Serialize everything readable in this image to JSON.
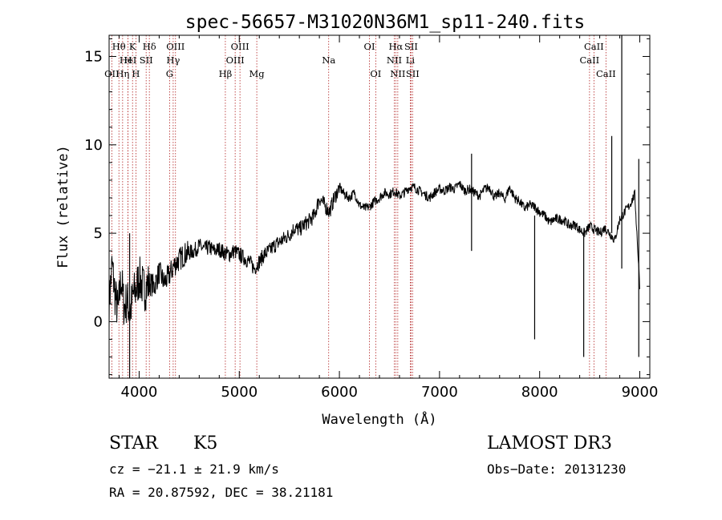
{
  "chart_data": {
    "type": "line",
    "title": "spec-56657-M31020N36M1_sp11-240.fits",
    "xlabel": "Wavelength (Å)",
    "ylabel": "Flux (relative)",
    "xlim": [
      3700,
      9100
    ],
    "ylim": [
      -3.2,
      16.2
    ],
    "x_ticks": [
      4000,
      5000,
      6000,
      7000,
      8000,
      9000
    ],
    "y_ticks": [
      0,
      5,
      10,
      15
    ],
    "series": [
      {
        "name": "flux",
        "x": [
          3700,
          3730,
          3760,
          3790,
          3820,
          3850,
          3880,
          3910,
          3940,
          3970,
          4000,
          4050,
          4100,
          4150,
          4200,
          4250,
          4300,
          4350,
          4400,
          4450,
          4500,
          4550,
          4600,
          4650,
          4700,
          4750,
          4800,
          4850,
          4900,
          4950,
          5000,
          5050,
          5100,
          5150,
          5200,
          5250,
          5300,
          5350,
          5400,
          5450,
          5500,
          5550,
          5600,
          5650,
          5700,
          5750,
          5800,
          5850,
          5900,
          5950,
          6000,
          6050,
          6100,
          6150,
          6200,
          6250,
          6300,
          6350,
          6400,
          6450,
          6500,
          6550,
          6600,
          6650,
          6700,
          6750,
          6800,
          6850,
          6900,
          6950,
          7000,
          7050,
          7100,
          7150,
          7200,
          7250,
          7300,
          7350,
          7400,
          7450,
          7500,
          7550,
          7600,
          7650,
          7700,
          7750,
          7800,
          7850,
          7900,
          7950,
          8000,
          8050,
          8100,
          8150,
          8200,
          8250,
          8300,
          8350,
          8400,
          8450,
          8500,
          8550,
          8600,
          8650,
          8700,
          8750,
          8800,
          8850,
          8900,
          8950,
          9000
        ],
        "values": [
          1.0,
          3.2,
          1.5,
          0.5,
          2.5,
          0.8,
          1.2,
          0.5,
          1.5,
          1.8,
          2.5,
          1.8,
          2.2,
          2.0,
          2.8,
          2.2,
          2.6,
          3.2,
          3.5,
          3.8,
          3.9,
          4.0,
          4.3,
          4.1,
          4.2,
          4.0,
          4.1,
          3.9,
          3.8,
          4.0,
          3.8,
          3.6,
          3.4,
          3.0,
          3.4,
          3.8,
          4.0,
          4.3,
          4.5,
          4.7,
          4.9,
          5.3,
          5.2,
          5.5,
          5.7,
          6.0,
          7.0,
          6.6,
          6.2,
          7.0,
          7.6,
          7.2,
          7.0,
          7.3,
          6.6,
          6.4,
          6.5,
          6.8,
          7.0,
          7.3,
          7.2,
          7.4,
          7.1,
          7.3,
          7.6,
          7.6,
          7.4,
          7.2,
          7.0,
          7.3,
          7.5,
          7.4,
          7.6,
          7.5,
          7.8,
          7.4,
          7.5,
          7.3,
          7.1,
          7.5,
          7.6,
          7.0,
          7.3,
          6.9,
          7.6,
          7.0,
          6.8,
          6.4,
          6.6,
          6.5,
          6.2,
          6.0,
          5.6,
          5.8,
          5.8,
          5.7,
          5.4,
          5.5,
          5.2,
          5.0,
          5.4,
          5.2,
          5.0,
          5.3,
          5.0,
          4.6,
          5.8,
          6.2,
          6.6,
          7.2,
          2.0
        ],
        "spikes": [
          {
            "x": 3905,
            "values": [
              5.0,
              -3.2
            ]
          },
          {
            "x": 7320,
            "values": [
              9.5,
              4.0
            ]
          },
          {
            "x": 7950,
            "values": [
              6.0,
              -1.0
            ]
          },
          {
            "x": 8440,
            "values": [
              5.0,
              -2.0
            ]
          },
          {
            "x": 8820,
            "values": [
              16.2,
              3.0
            ]
          },
          {
            "x": 8720,
            "values": [
              10.5,
              5.0
            ]
          },
          {
            "x": 8990,
            "values": [
              9.2,
              -2.0
            ]
          }
        ]
      }
    ],
    "spectral_lines": [
      {
        "label": "Hθ",
        "x": 3798,
        "row": 0
      },
      {
        "label": "OII",
        "x": 3727,
        "row": 2
      },
      {
        "label": "Hη",
        "x": 3835,
        "row": 2
      },
      {
        "label": "HeI",
        "x": 3889,
        "row": 1
      },
      {
        "label": "H",
        "x": 3889,
        "row": 1
      },
      {
        "label": "K",
        "x": 3934,
        "row": 0
      },
      {
        "label": "H",
        "x": 3968,
        "row": 2
      },
      {
        "label": "SII",
        "x": 4070,
        "row": 1
      },
      {
        "label": "Hδ",
        "x": 4102,
        "row": 0
      },
      {
        "label": "OIII",
        "x": 4363,
        "row": 0
      },
      {
        "label": "Hγ",
        "x": 4340,
        "row": 1
      },
      {
        "label": "G",
        "x": 4304,
        "row": 2
      },
      {
        "label": "Hβ",
        "x": 4861,
        "row": 2
      },
      {
        "label": "OIII",
        "x": 5007,
        "row": 0
      },
      {
        "label": "OIII",
        "x": 4959,
        "row": 1
      },
      {
        "label": "Mg",
        "x": 5175,
        "row": 2
      },
      {
        "label": "Na",
        "x": 5893,
        "row": 1
      },
      {
        "label": "OI",
        "x": 6300,
        "row": 0
      },
      {
        "label": "OI",
        "x": 6363,
        "row": 2
      },
      {
        "label": "Hα",
        "x": 6563,
        "row": 0
      },
      {
        "label": "NII",
        "x": 6548,
        "row": 1
      },
      {
        "label": "NII",
        "x": 6583,
        "row": 2
      },
      {
        "label": "SII",
        "x": 6716,
        "row": 0
      },
      {
        "label": "Li",
        "x": 6708,
        "row": 1
      },
      {
        "label": "SII",
        "x": 6731,
        "row": 2
      },
      {
        "label": "CaII",
        "x": 8542,
        "row": 0
      },
      {
        "label": "CaII",
        "x": 8498,
        "row": 1
      },
      {
        "label": "CaII",
        "x": 8662,
        "row": 2
      }
    ]
  },
  "footer": {
    "class_label": "STAR",
    "subclass": "K5",
    "survey": "LAMOST DR3",
    "cz": "cz = −21.1 ± 21.9 km/s",
    "obs_date": "Obs−Date: 20131230",
    "coords": "RA =  20.87592, DEC =  38.21181"
  },
  "colors": {
    "line": "#000000",
    "marker": "#b22222",
    "background": "#ffffff"
  }
}
